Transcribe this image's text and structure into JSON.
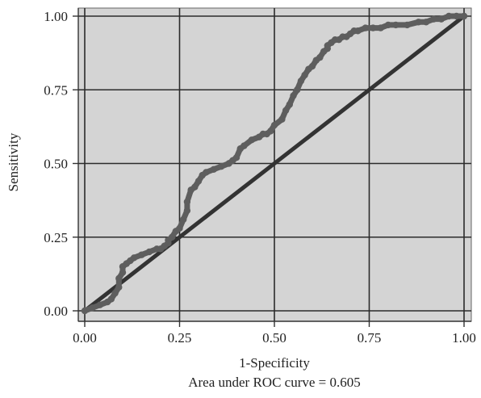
{
  "chart_data": {
    "type": "line",
    "title": "",
    "xlabel": "1-Specificity",
    "ylabel": "Sensitivity",
    "caption": "Area under ROC curve = 0.605",
    "xlim": [
      0,
      1
    ],
    "ylim": [
      0,
      1
    ],
    "xticks": [
      "0.00",
      "0.25",
      "0.50",
      "0.75",
      "1.00"
    ],
    "yticks": [
      "0.00",
      "0.25",
      "0.50",
      "0.75",
      "1.00"
    ],
    "grid": true,
    "legend": "none",
    "colors": {
      "plot_background": "#d4d4d4",
      "grid": "#2b2b2b",
      "roc_curve": "#5e5e5e",
      "reference_line": "#333333"
    },
    "series": [
      {
        "values_x": [
          0.0,
          0.02,
          0.04,
          0.06,
          0.07,
          0.08,
          0.09,
          0.09,
          0.1,
          0.1,
          0.11,
          0.12,
          0.13,
          0.15,
          0.17,
          0.19,
          0.2,
          0.21,
          0.22,
          0.22,
          0.23,
          0.24,
          0.25,
          0.26,
          0.27,
          0.27,
          0.28,
          0.29,
          0.3,
          0.31,
          0.32,
          0.34,
          0.36,
          0.38,
          0.39,
          0.4,
          0.41,
          0.42,
          0.44,
          0.46,
          0.47,
          0.48,
          0.49,
          0.5,
          0.52,
          0.53,
          0.54,
          0.55,
          0.56,
          0.57,
          0.58,
          0.59,
          0.6,
          0.61,
          0.62,
          0.63,
          0.64,
          0.64,
          0.65,
          0.66,
          0.67,
          0.68,
          0.69,
          0.7,
          0.71,
          0.72,
          0.74,
          0.76,
          0.78,
          0.8,
          0.82,
          0.85,
          0.88,
          0.9,
          0.92,
          0.94,
          0.96,
          0.98,
          1.0
        ],
        "values_y": [
          0.0,
          0.01,
          0.02,
          0.03,
          0.04,
          0.06,
          0.08,
          0.11,
          0.13,
          0.15,
          0.16,
          0.17,
          0.18,
          0.19,
          0.2,
          0.21,
          0.21,
          0.22,
          0.23,
          0.24,
          0.25,
          0.27,
          0.28,
          0.31,
          0.34,
          0.37,
          0.41,
          0.42,
          0.44,
          0.46,
          0.47,
          0.48,
          0.49,
          0.5,
          0.51,
          0.52,
          0.55,
          0.56,
          0.58,
          0.59,
          0.6,
          0.6,
          0.61,
          0.63,
          0.65,
          0.68,
          0.7,
          0.73,
          0.75,
          0.78,
          0.8,
          0.82,
          0.83,
          0.85,
          0.86,
          0.88,
          0.89,
          0.9,
          0.91,
          0.92,
          0.92,
          0.93,
          0.93,
          0.94,
          0.95,
          0.95,
          0.96,
          0.96,
          0.96,
          0.97,
          0.97,
          0.97,
          0.98,
          0.98,
          0.99,
          0.99,
          1.0,
          1.0,
          1.0
        ]
      },
      {
        "values_x": [
          0,
          1
        ],
        "values_y": [
          0,
          1
        ]
      }
    ]
  }
}
